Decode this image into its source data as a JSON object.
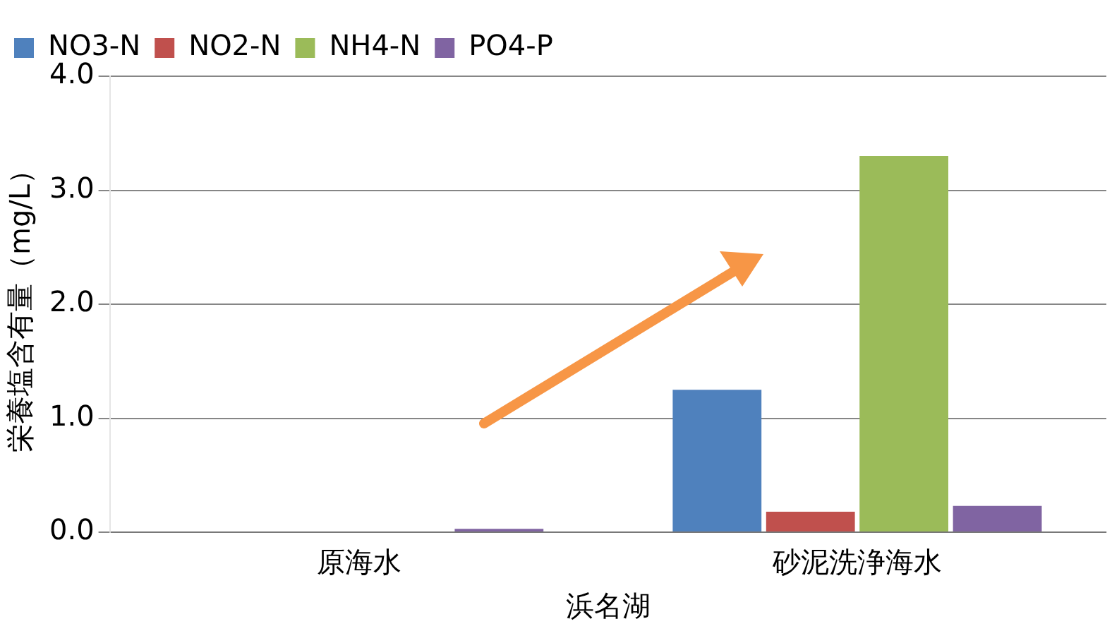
{
  "chart_data": {
    "type": "bar",
    "xlabel": "浜名湖",
    "ylabel": "栄養塩含有量（mg/L）",
    "categories": [
      "原海水",
      "砂泥洗浄海水"
    ],
    "series": [
      {
        "name": "NO3-N",
        "color": "#4f81bd",
        "values": [
          0,
          1.25
        ]
      },
      {
        "name": "NO2-N",
        "color": "#c0504d",
        "values": [
          0,
          0.18
        ]
      },
      {
        "name": "NH4-N",
        "color": "#9bbb59",
        "values": [
          0,
          3.3
        ]
      },
      {
        "name": "PO4-P",
        "color": "#8064a2",
        "values": [
          0.03,
          0.23
        ]
      }
    ],
    "ylim": [
      0,
      4
    ],
    "yticks": [
      {
        "value": 0,
        "label": "0.0"
      },
      {
        "value": 1,
        "label": "1.0"
      },
      {
        "value": 2,
        "label": "2.0"
      },
      {
        "value": 3,
        "label": "3.0"
      },
      {
        "value": 4,
        "label": "4.0"
      }
    ],
    "grid": "y",
    "legend": "top left"
  }
}
